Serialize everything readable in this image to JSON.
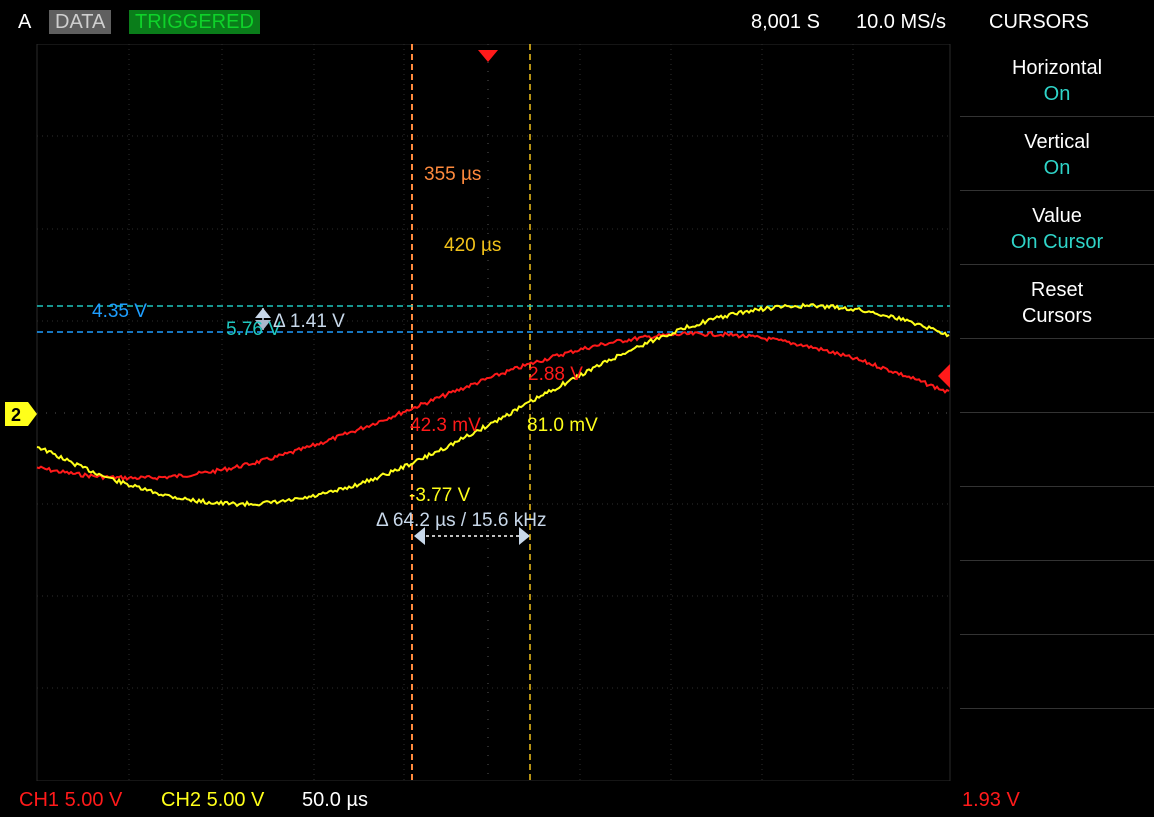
{
  "header": {
    "channel": "A",
    "data_badge": "DATA",
    "status_badge": "TRIGGERED",
    "samples": "8,001 S",
    "sample_rate": "10.0 MS/s",
    "menu_title": "CURSORS"
  },
  "sidebar": {
    "items": [
      {
        "label": "Horizontal",
        "value": "On"
      },
      {
        "label": "Vertical",
        "value": "On"
      },
      {
        "label": "Value",
        "value": "On Cursor"
      },
      {
        "label": "Reset",
        "value": "Cursors"
      }
    ]
  },
  "cursors": {
    "h1_time": "355 µs",
    "h2_time": "420 µs",
    "v1_level": "4.35 V",
    "v2_level": "5.76 V",
    "v_delta": "Δ 1.41 V",
    "ch1_at_cursor1": "42.3 mV",
    "ch1_at_cursor2": "2.88 V",
    "ch2_at_cursor2": "81.0 mV",
    "ch2_at_cursor1": "-3.77 V",
    "h_delta": "Δ 64.2 µs / 15.6 kHz"
  },
  "footer": {
    "ch1_scale": "CH1 5.00 V",
    "ch2_scale": "CH2 5.00 V",
    "timebase": "50.0 µs",
    "trigger_level": "1.93 V"
  },
  "ch2_marker_label": "2",
  "colors": {
    "ch1": "#ff1a1a",
    "ch2": "#ffff1a",
    "cursor_h1": "#ff8a3d",
    "cursor_h2": "#f2c21a",
    "cursor_v1": "#1e9eff",
    "cursor_v2": "#1fc8c0",
    "menu_value": "#2fd4c8"
  }
}
